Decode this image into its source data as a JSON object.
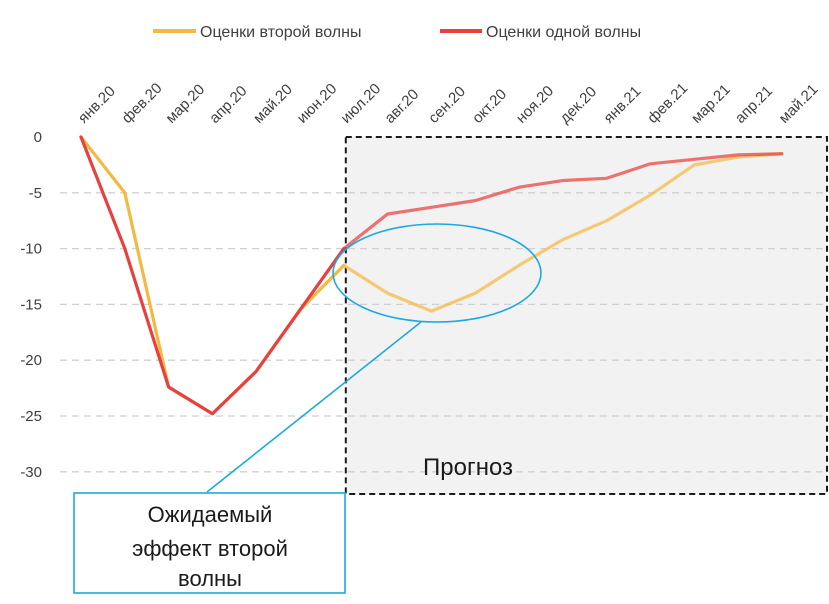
{
  "chart_data": {
    "type": "line",
    "categories": [
      "янв.20",
      "фев.20",
      "мар.20",
      "апр.20",
      "май.20",
      "июн.20",
      "июл.20",
      "авг.20",
      "сен.20",
      "окт.20",
      "ноя.20",
      "дек.20",
      "янв.21",
      "фев.21",
      "мар.21",
      "апр.21",
      "май.21"
    ],
    "series": [
      {
        "name": "Оценки второй волны",
        "color": "#f4b942",
        "values": [
          0,
          -5,
          -22.4,
          -24.8,
          -21,
          -15.5,
          -11.5,
          -14,
          -15.6,
          -14,
          -11.5,
          -9.2,
          -7.5,
          -5.2,
          -2.5,
          -1.8,
          -1.5
        ]
      },
      {
        "name": "Оценки одной волны",
        "color": "#e8403f",
        "values": [
          0,
          -10,
          -22.4,
          -24.8,
          -21,
          -15.5,
          -10,
          -6.9,
          -6.3,
          -5.7,
          -4.5,
          -3.9,
          -3.7,
          -2.4,
          -2.0,
          -1.6,
          -1.5
        ]
      }
    ],
    "forecast_start_index": 6,
    "ylim": [
      -32,
      0
    ],
    "yticks": [
      0,
      -5,
      -10,
      -15,
      -20,
      -25,
      -30
    ],
    "grid": "dashed-horizontal",
    "legend_position": "top",
    "annotations": {
      "forecast_label": "Прогноз",
      "callout_lines": [
        "Ожидаемый",
        "эффект второй",
        "волны"
      ]
    },
    "colors": {
      "callout": "#1aa9e0",
      "forecast_fill": "#f2f2f2",
      "grid": "#d0d0d0"
    }
  }
}
